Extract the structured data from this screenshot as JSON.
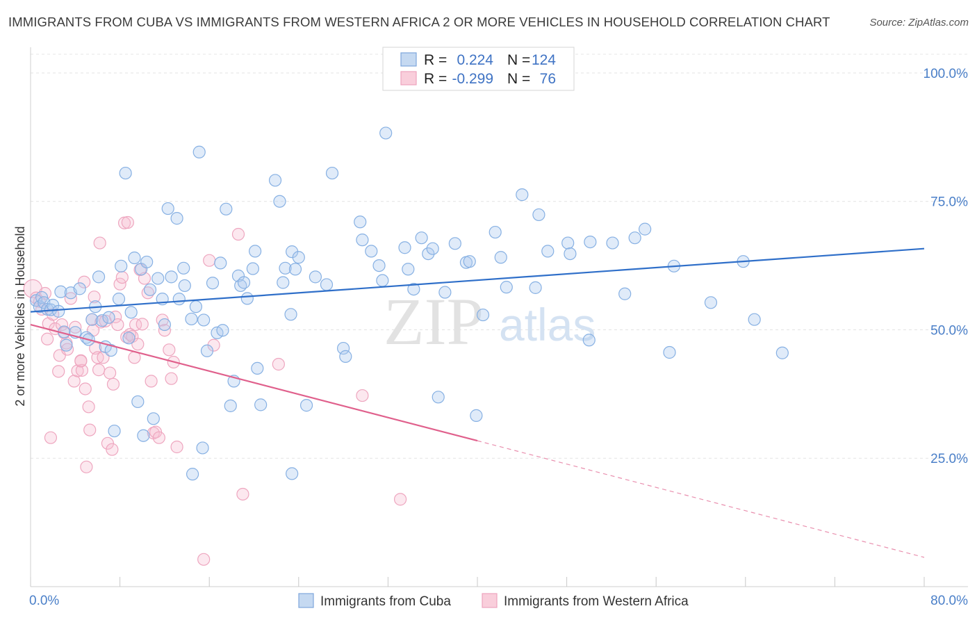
{
  "header": {
    "title": "IMMIGRANTS FROM CUBA VS IMMIGRANTS FROM WESTERN AFRICA 2 OR MORE VEHICLES IN HOUSEHOLD CORRELATION CHART",
    "source": "Source: ZipAtlas.com"
  },
  "legend": {
    "r_label": "R =",
    "n_label": "N =",
    "rows": [
      {
        "r": "0.224",
        "n": "124"
      },
      {
        "r": "-0.299",
        "n": " 76"
      }
    ]
  },
  "bottom_legend": [
    "Immigrants from Cuba",
    "Immigrants from Western Africa"
  ],
  "watermark": {
    "zip": "ZIP",
    "atlas": "atlas"
  },
  "chart_data": {
    "type": "scatter",
    "title": "IMMIGRANTS FROM CUBA VS IMMIGRANTS FROM WESTERN AFRICA 2 OR MORE VEHICLES IN HOUSEHOLD CORRELATION CHART",
    "xlabel": "",
    "ylabel": "2 or more Vehicles in Household",
    "xlim": [
      0,
      80
    ],
    "ylim": [
      0,
      105
    ],
    "x_tick_labels": [
      "0.0%",
      "80.0%"
    ],
    "y_ticks": [
      25,
      50,
      75,
      100
    ],
    "y_tick_labels": [
      "25.0%",
      "50.0%",
      "75.0%",
      "100.0%"
    ],
    "grid": true,
    "legend_position": "top-center",
    "colors": {
      "cuba": "#8db4e3",
      "cuba_line": "#2f6fc9",
      "wafrica": "#f2a8c0",
      "wafrica_line": "#e0608c"
    },
    "series": [
      {
        "name": "Immigrants from Cuba",
        "r": 0.224,
        "n": 124,
        "trend": {
          "x0": 0,
          "y0": 53.5,
          "x1": 80,
          "y1": 65.8
        },
        "points": [
          [
            0.5,
            55.7
          ],
          [
            0.8,
            54.5
          ],
          [
            1.0,
            56.3
          ],
          [
            1.2,
            55.3
          ],
          [
            1.5,
            54.0
          ],
          [
            1.8,
            53.9
          ],
          [
            2.0,
            54.8
          ],
          [
            2.5,
            53.6
          ],
          [
            2.7,
            57.4
          ],
          [
            3.0,
            49.6
          ],
          [
            3.2,
            47.0
          ],
          [
            3.6,
            57.2
          ],
          [
            4.0,
            49.5
          ],
          [
            4.4,
            58.0
          ],
          [
            5.0,
            48.5
          ],
          [
            5.2,
            48.1
          ],
          [
            5.5,
            52.0
          ],
          [
            5.8,
            54.5
          ],
          [
            6.1,
            60.3
          ],
          [
            6.4,
            51.8
          ],
          [
            6.7,
            46.7
          ],
          [
            7.0,
            52.4
          ],
          [
            7.2,
            46.0
          ],
          [
            7.5,
            30.3
          ],
          [
            7.9,
            56.0
          ],
          [
            8.1,
            62.4
          ],
          [
            8.5,
            80.5
          ],
          [
            8.8,
            48.4
          ],
          [
            9.0,
            53.4
          ],
          [
            9.3,
            64.0
          ],
          [
            9.6,
            36.0
          ],
          [
            9.9,
            61.8
          ],
          [
            10.1,
            29.4
          ],
          [
            10.4,
            63.2
          ],
          [
            10.7,
            57.8
          ],
          [
            11.0,
            32.7
          ],
          [
            11.4,
            60.0
          ],
          [
            11.8,
            56.0
          ],
          [
            12.0,
            51.0
          ],
          [
            12.3,
            73.6
          ],
          [
            12.6,
            60.3
          ],
          [
            13.1,
            71.7
          ],
          [
            13.3,
            56.0
          ],
          [
            13.7,
            62.0
          ],
          [
            13.8,
            58.6
          ],
          [
            14.4,
            52.1
          ],
          [
            14.8,
            54.5
          ],
          [
            15.1,
            84.6
          ],
          [
            15.4,
            27.0
          ],
          [
            15.5,
            51.9
          ],
          [
            15.8,
            45.9
          ],
          [
            16.3,
            59.1
          ],
          [
            16.7,
            49.4
          ],
          [
            17.0,
            63.0
          ],
          [
            17.2,
            49.9
          ],
          [
            17.5,
            73.5
          ],
          [
            17.9,
            35.2
          ],
          [
            18.2,
            40.0
          ],
          [
            18.6,
            60.5
          ],
          [
            18.8,
            58.6
          ],
          [
            19.1,
            59.2
          ],
          [
            19.4,
            56.1
          ],
          [
            19.9,
            61.9
          ],
          [
            20.1,
            65.3
          ],
          [
            20.3,
            42.5
          ],
          [
            20.6,
            35.4
          ],
          [
            21.9,
            79.1
          ],
          [
            22.3,
            75.0
          ],
          [
            22.6,
            59.2
          ],
          [
            22.8,
            62.0
          ],
          [
            23.3,
            53.0
          ],
          [
            23.4,
            65.2
          ],
          [
            23.7,
            61.8
          ],
          [
            24.0,
            64.1
          ],
          [
            24.7,
            35.3
          ],
          [
            25.5,
            60.3
          ],
          [
            26.5,
            58.8
          ],
          [
            27.0,
            80.5
          ],
          [
            28.0,
            46.4
          ],
          [
            28.2,
            44.8
          ],
          [
            29.5,
            71.0
          ],
          [
            29.7,
            67.5
          ],
          [
            30.5,
            65.3
          ],
          [
            31.2,
            62.5
          ],
          [
            31.5,
            59.6
          ],
          [
            31.8,
            88.3
          ],
          [
            33.5,
            66.0
          ],
          [
            33.8,
            61.8
          ],
          [
            34.3,
            57.9
          ],
          [
            35.0,
            67.9
          ],
          [
            35.6,
            64.8
          ],
          [
            36.0,
            65.8
          ],
          [
            36.5,
            36.9
          ],
          [
            37.1,
            57.3
          ],
          [
            38.0,
            66.8
          ],
          [
            39.0,
            63.1
          ],
          [
            39.3,
            63.3
          ],
          [
            39.9,
            33.3
          ],
          [
            40.5,
            52.9
          ],
          [
            41.6,
            69.0
          ],
          [
            42.1,
            64.1
          ],
          [
            42.6,
            58.3
          ],
          [
            44.0,
            76.3
          ],
          [
            45.2,
            58.2
          ],
          [
            45.5,
            72.4
          ],
          [
            46.3,
            65.3
          ],
          [
            48.1,
            66.9
          ],
          [
            48.3,
            64.8
          ],
          [
            50.0,
            48.0
          ],
          [
            50.1,
            67.1
          ],
          [
            52.1,
            66.9
          ],
          [
            53.2,
            57.0
          ],
          [
            54.1,
            67.9
          ],
          [
            55.0,
            69.6
          ],
          [
            57.2,
            45.6
          ],
          [
            57.6,
            62.4
          ],
          [
            60.9,
            55.3
          ],
          [
            63.8,
            63.3
          ],
          [
            64.8,
            52.0
          ],
          [
            67.3,
            45.5
          ],
          [
            14.5,
            21.9
          ],
          [
            23.4,
            22.0
          ]
        ]
      },
      {
        "name": "Immigrants from Western Africa",
        "r": -0.299,
        "n": 76,
        "trend": {
          "x0": 0,
          "y0": 51.0,
          "x1": 40,
          "y1": 28.4
        },
        "trend_dashed": {
          "x0": 40,
          "y0": 28.4,
          "x1": 80,
          "y1": 5.7
        },
        "points": [
          [
            0.2,
            58.0
          ],
          [
            0.5,
            56.2
          ],
          [
            0.8,
            55.5
          ],
          [
            1.0,
            54.0
          ],
          [
            1.3,
            57.1
          ],
          [
            1.5,
            48.2
          ],
          [
            1.6,
            51.2
          ],
          [
            1.8,
            29.0
          ],
          [
            2.0,
            53.0
          ],
          [
            2.2,
            50.2
          ],
          [
            2.5,
            41.9
          ],
          [
            2.6,
            45.0
          ],
          [
            2.8,
            51.0
          ],
          [
            3.0,
            49.4
          ],
          [
            3.2,
            47.4
          ],
          [
            3.3,
            46.2
          ],
          [
            3.6,
            56.1
          ],
          [
            3.9,
            40.0
          ],
          [
            4.0,
            50.5
          ],
          [
            4.2,
            42.0
          ],
          [
            4.5,
            44.0
          ],
          [
            4.6,
            42.1
          ],
          [
            4.8,
            59.3
          ],
          [
            4.9,
            38.5
          ],
          [
            5.0,
            23.3
          ],
          [
            5.2,
            35.0
          ],
          [
            5.3,
            30.5
          ],
          [
            5.5,
            52.0
          ],
          [
            5.6,
            49.9
          ],
          [
            5.8,
            46.4
          ],
          [
            6.0,
            44.6
          ],
          [
            6.1,
            42.2
          ],
          [
            6.3,
            51.5
          ],
          [
            6.5,
            44.6
          ],
          [
            6.7,
            51.7
          ],
          [
            6.9,
            27.9
          ],
          [
            7.1,
            41.6
          ],
          [
            7.3,
            26.7
          ],
          [
            7.4,
            39.4
          ],
          [
            7.6,
            52.5
          ],
          [
            7.8,
            51.0
          ],
          [
            8.0,
            58.9
          ],
          [
            8.2,
            60.2
          ],
          [
            8.4,
            70.8
          ],
          [
            8.6,
            48.6
          ],
          [
            8.9,
            49.1
          ],
          [
            9.1,
            48.7
          ],
          [
            9.3,
            44.6
          ],
          [
            9.4,
            51.0
          ],
          [
            9.6,
            47.2
          ],
          [
            9.8,
            61.7
          ],
          [
            10.0,
            51.1
          ],
          [
            10.2,
            60.0
          ],
          [
            10.5,
            57.2
          ],
          [
            10.8,
            40.0
          ],
          [
            11.0,
            29.9
          ],
          [
            11.2,
            30.1
          ],
          [
            11.5,
            29.0
          ],
          [
            11.8,
            51.9
          ],
          [
            12.0,
            49.9
          ],
          [
            12.4,
            46.1
          ],
          [
            12.6,
            40.5
          ],
          [
            12.8,
            43.7
          ],
          [
            13.1,
            27.2
          ],
          [
            15.5,
            5.3
          ],
          [
            16.0,
            63.5
          ],
          [
            16.4,
            47.0
          ],
          [
            18.6,
            68.6
          ],
          [
            19.0,
            18.0
          ],
          [
            22.2,
            43.3
          ],
          [
            29.7,
            37.2
          ],
          [
            33.1,
            17.0
          ],
          [
            4.5,
            43.9
          ],
          [
            5.7,
            56.4
          ],
          [
            8.7,
            70.9
          ],
          [
            6.2,
            66.9
          ]
        ]
      }
    ]
  }
}
